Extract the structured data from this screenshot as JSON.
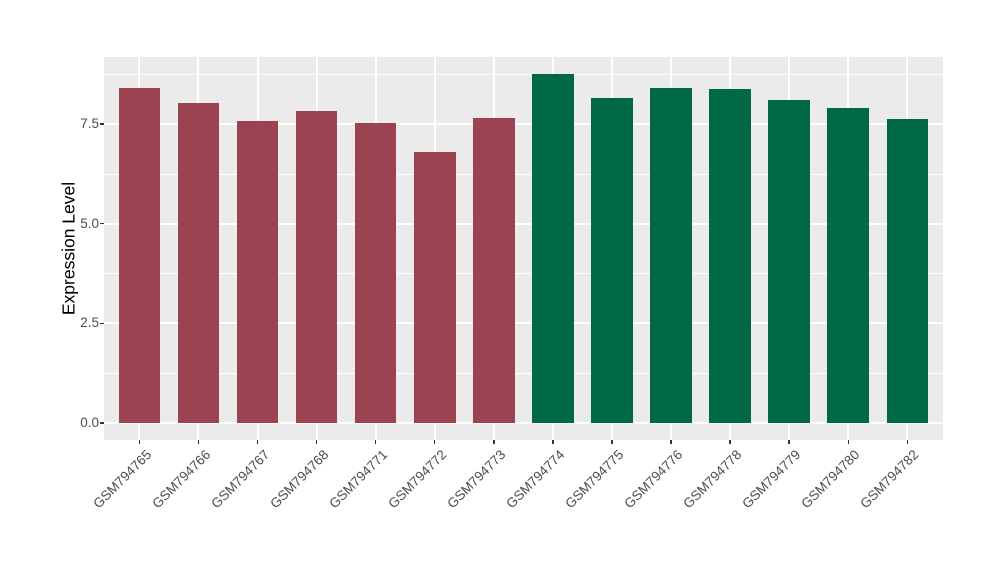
{
  "chart_data": {
    "type": "bar",
    "title": "",
    "xlabel": "",
    "ylabel": "Expression Level",
    "categories": [
      "GSM794765",
      "GSM794766",
      "GSM794767",
      "GSM794768",
      "GSM794771",
      "GSM794772",
      "GSM794773",
      "GSM794774",
      "GSM794775",
      "GSM794776",
      "GSM794778",
      "GSM794779",
      "GSM794780",
      "GSM794782"
    ],
    "values": [
      8.41,
      8.03,
      7.58,
      7.82,
      7.52,
      6.8,
      7.64,
      8.76,
      8.16,
      8.4,
      8.38,
      8.1,
      7.91,
      7.63
    ],
    "bar_colors": [
      "#9B4351",
      "#9B4351",
      "#9B4351",
      "#9B4351",
      "#9B4351",
      "#9B4351",
      "#9B4351",
      "#006747",
      "#006747",
      "#006747",
      "#006747",
      "#006747",
      "#006747",
      "#006747"
    ],
    "yticks": [
      0.0,
      2.5,
      5.0,
      7.5
    ],
    "ytick_labels": [
      "0.0",
      "2.5",
      "5.0",
      "7.5"
    ],
    "minor_gridlines": [
      1.25,
      3.75,
      6.25,
      8.75
    ],
    "ylim": [
      -0.44,
      9.18
    ],
    "grid": true,
    "legend_position": "none",
    "panel_background": "#EBEBEB",
    "gridline_color": "#FFFFFF",
    "tick_color": "#333333",
    "tick_label_color": "#4D4D4D"
  }
}
